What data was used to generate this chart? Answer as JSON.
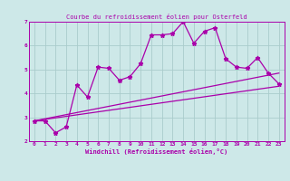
{
  "title": "Courbe du refroidissement éolien pour Osterfeld",
  "xlabel": "Windchill (Refroidissement éolien,°C)",
  "background_color": "#cde8e8",
  "line_color": "#aa00aa",
  "grid_color": "#aacccc",
  "xlim": [
    -0.5,
    23.5
  ],
  "ylim": [
    2,
    7
  ],
  "xticks": [
    0,
    1,
    2,
    3,
    4,
    5,
    6,
    7,
    8,
    9,
    10,
    11,
    12,
    13,
    14,
    15,
    16,
    17,
    18,
    19,
    20,
    21,
    22,
    23
  ],
  "yticks": [
    2,
    3,
    4,
    5,
    6,
    7
  ],
  "series1_x": [
    0,
    1,
    2,
    3,
    4,
    5,
    6,
    7,
    8,
    9,
    10,
    11,
    12,
    13,
    14,
    15,
    16,
    17,
    18,
    19,
    20,
    21,
    22,
    23
  ],
  "series1_y": [
    2.85,
    2.85,
    2.35,
    2.6,
    4.35,
    3.85,
    5.1,
    5.05,
    4.55,
    4.7,
    5.25,
    6.45,
    6.45,
    6.5,
    7.0,
    6.1,
    6.6,
    6.75,
    5.45,
    5.1,
    5.05,
    5.5,
    4.85,
    4.4
  ],
  "series2_x": [
    0,
    23
  ],
  "series2_y": [
    2.85,
    4.3
  ],
  "series3_x": [
    0,
    23
  ],
  "series3_y": [
    2.85,
    4.85
  ],
  "figsize": [
    3.2,
    2.0
  ],
  "dpi": 100
}
